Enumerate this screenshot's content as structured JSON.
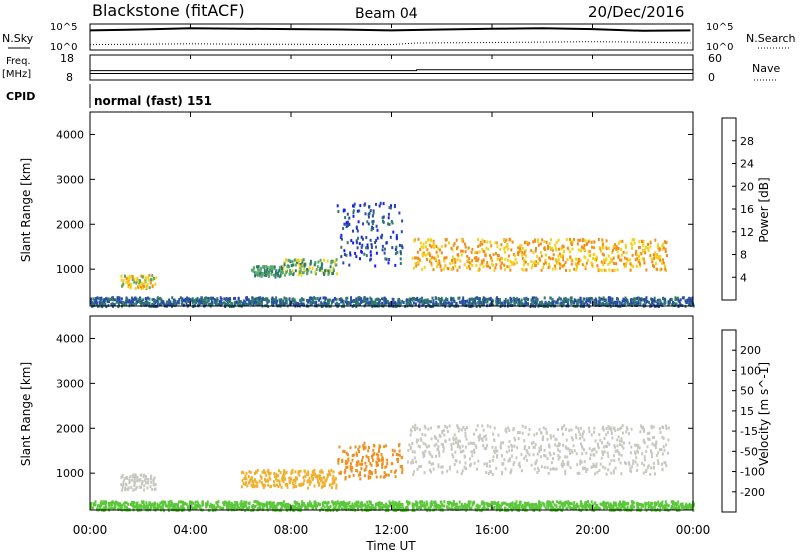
{
  "header": {
    "station": "Blackstone (fitACF)",
    "beam": "Beam 04",
    "date": "20/Dec/2016"
  },
  "left_labels": {
    "nsky": "N.Sky",
    "freq": "Freq.",
    "freq_unit": "[MHz]",
    "cpid": "CPID"
  },
  "right_labels": {
    "nsearch": "N.Search",
    "nave": "Nave"
  },
  "cpid_text": "normal (fast) 151",
  "colors": {
    "power_scale": [
      "#1a1aff",
      "#2a4aa8",
      "#2f7a6a",
      "#5aa86a",
      "#f2d21a",
      "#f28c1a",
      "#e83a1a",
      "#d40000"
    ],
    "velocity_scale": [
      "#e00000",
      "#f05020",
      "#f09020",
      "#f0b030",
      "#c8c8c0",
      "#5ac83a",
      "#2a9a4a",
      "#1a6aa0",
      "#1a2ae0"
    ]
  },
  "chart_data": [
    {
      "type": "line",
      "panel": "noise",
      "x_ticks": [
        "00:00",
        "04:00",
        "08:00",
        "12:00",
        "16:00",
        "20:00",
        "00:00"
      ],
      "left_ticks": [
        "10^5",
        "10^0"
      ],
      "right_ticks": [
        "10^5",
        "10^0"
      ],
      "series": [
        {
          "name": "N.Sky",
          "x": [
            0,
            2,
            4,
            6,
            8,
            10,
            12,
            14,
            16,
            18,
            20,
            22,
            23.9
          ],
          "y": [
            4.2,
            4.4,
            4.7,
            4.6,
            4.5,
            4.4,
            4.2,
            4.4,
            4.6,
            4.7,
            4.5,
            4.1,
            4.2
          ]
        },
        {
          "name": "N.Search",
          "x": [
            0,
            2,
            4,
            6,
            8,
            10,
            12,
            13,
            16,
            18,
            20,
            22,
            23.9
          ],
          "y": [
            0.8,
            0.9,
            1.0,
            0.9,
            0.9,
            0.8,
            0.8,
            1.2,
            1.3,
            1.4,
            1.5,
            1.4,
            1.2
          ]
        }
      ]
    },
    {
      "type": "line",
      "panel": "frequency",
      "left_ticks": [
        "18",
        "8"
      ],
      "right_ticks": [
        "60",
        "0"
      ],
      "series": [
        {
          "name": "Freq.",
          "x": [
            0,
            24
          ],
          "y": [
            10.5,
            10.5
          ]
        },
        {
          "name": "Nave",
          "x": [
            0,
            13,
            13,
            24
          ],
          "y": [
            23,
            23,
            25,
            25
          ]
        }
      ]
    },
    {
      "type": "heatmap",
      "panel": "power",
      "ylabel": "Slant Range [km]",
      "y_ticks": [
        "1000",
        "2000",
        "3000",
        "4000"
      ],
      "ylim": [
        180,
        4500
      ],
      "colorbar_label": "Power [dB]",
      "colorbar_ticks": [
        "4",
        "8",
        "12",
        "16",
        "20",
        "24",
        "28"
      ],
      "features": [
        {
          "x": [
            1.2,
            2.6
          ],
          "y": [
            600,
            900
          ],
          "value": 18
        },
        {
          "x": [
            6.4,
            7.6
          ],
          "y": [
            850,
            1100
          ],
          "value": 12
        },
        {
          "x": [
            7.6,
            9.8
          ],
          "y": [
            900,
            1250
          ],
          "value": 14
        },
        {
          "x": [
            9.8,
            12.4
          ],
          "y": [
            1100,
            2500
          ],
          "value": 6
        },
        {
          "x": [
            12.8,
            23.0
          ],
          "y": [
            1000,
            1700
          ],
          "value": 20
        },
        {
          "x": [
            0.0,
            24.0
          ],
          "y": [
            200,
            400
          ],
          "value": 8
        }
      ]
    },
    {
      "type": "heatmap",
      "panel": "velocity",
      "ylabel": "Slant Range [km]",
      "xlabel": "Time UT",
      "x_ticks": [
        "00:00",
        "04:00",
        "08:00",
        "12:00",
        "16:00",
        "20:00",
        "00:00"
      ],
      "y_ticks": [
        "1000",
        "2000",
        "3000",
        "4000"
      ],
      "ylim": [
        180,
        4500
      ],
      "colorbar_label": "Velocity [m s^-1]",
      "colorbar_ticks": [
        "200",
        "100",
        "50",
        "15",
        "-15",
        "-50",
        "-100",
        "-200"
      ],
      "features": [
        {
          "x": [
            1.2,
            2.6
          ],
          "y": [
            650,
            1000
          ],
          "value": 0
        },
        {
          "x": [
            6.0,
            9.8
          ],
          "y": [
            700,
            1100
          ],
          "value": -45
        },
        {
          "x": [
            9.8,
            12.4
          ],
          "y": [
            900,
            1700
          ],
          "value": -60
        },
        {
          "x": [
            12.6,
            23.0
          ],
          "y": [
            1000,
            2100
          ],
          "value": 0
        },
        {
          "x": [
            0.0,
            24.0
          ],
          "y": [
            200,
            400
          ],
          "value": 25
        }
      ]
    }
  ]
}
